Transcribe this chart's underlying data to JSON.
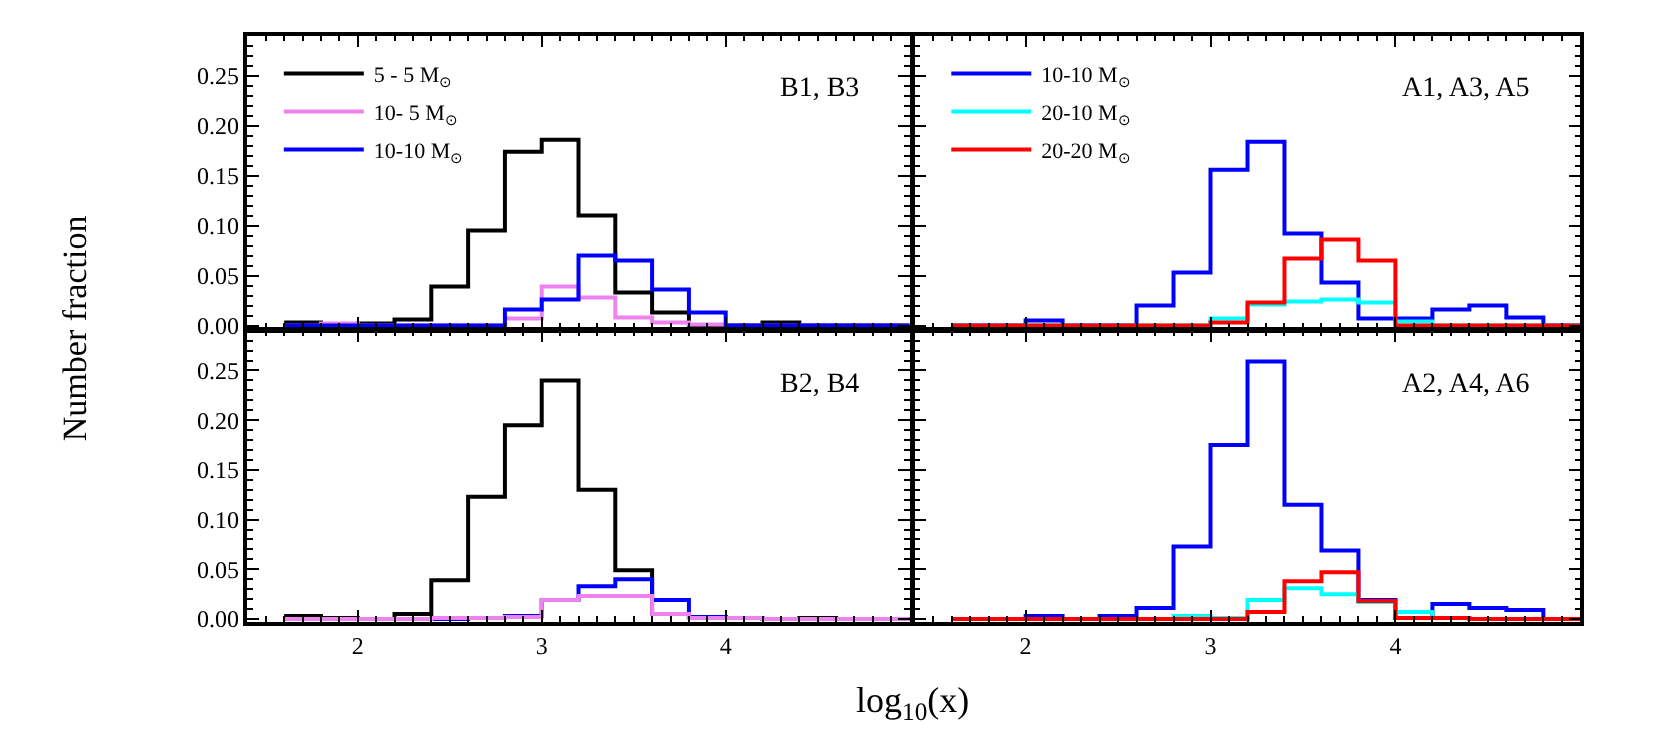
{
  "chart_data": [
    {
      "type": "histogram",
      "bins": [
        1.6,
        1.8,
        2.0,
        2.2,
        2.4,
        2.6,
        2.8,
        3.0,
        3.2,
        3.4,
        3.6,
        3.8,
        4.0,
        4.2,
        4.4,
        4.6,
        4.8,
        5.0
      ],
      "ylabel": "Number fraction",
      "xlim": [
        1.4,
        5.0
      ],
      "xticks": [
        2,
        3,
        4
      ],
      "ylim": [
        -0.003,
        0.29
      ],
      "yticks": [
        {
          "value": 0,
          "label": "0.00"
        },
        {
          "value": 0.05,
          "label": "0.05"
        },
        {
          "value": 0.1,
          "label": "0.10"
        },
        {
          "value": 0.15,
          "label": "0.15"
        },
        {
          "value": 0.2,
          "label": "0.20"
        },
        {
          "value": 0.25,
          "label": "0.25"
        }
      ],
      "tick_labels": "y",
      "legend": "top left",
      "annotations": [
        "B1, B3"
      ],
      "series": [
        {
          "name": "5 - 5 M$_{⊙}$",
          "color": "#000000",
          "values": [
            0.003,
            0.001,
            0.002,
            0.006,
            0.039,
            0.095,
            0.174,
            0.186,
            0.11,
            0.033,
            0.013,
            0,
            0,
            0.003,
            0,
            0,
            0
          ]
        },
        {
          "name": "10- 5 M$_{⊙}$",
          "color": "#ee82ee",
          "values": [
            0,
            0.002,
            0,
            0,
            0,
            0,
            0.007,
            0.039,
            0.028,
            0.008,
            0.003,
            0.001,
            0,
            0,
            0,
            0,
            0
          ]
        },
        {
          "name": "10-10 M$_{⊙}$",
          "color": "#0000ff",
          "values": [
            0,
            0,
            0,
            0,
            0,
            0,
            0.016,
            0.026,
            0.07,
            0.065,
            0.036,
            0.013,
            0,
            0,
            0,
            0,
            0
          ]
        }
      ]
    },
    {
      "type": "histogram",
      "bins": [
        1.6,
        1.8,
        2.0,
        2.2,
        2.4,
        2.6,
        2.8,
        3.0,
        3.2,
        3.4,
        3.6,
        3.8,
        4.0,
        4.2,
        4.4,
        4.6,
        4.8,
        5.0
      ],
      "xlim": [
        1.4,
        5.0
      ],
      "xticks": [
        2,
        3,
        4
      ],
      "ylim": [
        -0.003,
        0.29
      ],
      "yticks": [
        0,
        0.05,
        0.1,
        0.15,
        0.2,
        0.25
      ],
      "tick_labels": false,
      "legend": "top left",
      "annotations": [
        "A1, A3, A5"
      ],
      "series": [
        {
          "name": "10-10 M$_{⊙}$",
          "color": "#0000ff",
          "values": [
            0,
            0,
            0.005,
            0,
            0,
            0.02,
            0.053,
            0.156,
            0.184,
            0.092,
            0.043,
            0.007,
            0.007,
            0.016,
            0.02,
            0.008,
            0
          ]
        },
        {
          "name": "20-10 M$_{⊙}$",
          "color": "#00ffff",
          "values": [
            0,
            0,
            0,
            0,
            0,
            0,
            0,
            0.007,
            0.021,
            0.024,
            0.026,
            0.023,
            0.004,
            0,
            0,
            0,
            0
          ]
        },
        {
          "name": "20-20 M$_{⊙}$",
          "color": "#ff0000",
          "values": [
            0,
            0,
            0,
            0,
            0,
            0,
            0,
            0.003,
            0.023,
            0.067,
            0.086,
            0.065,
            0,
            0,
            0,
            0,
            0
          ]
        }
      ]
    },
    {
      "type": "histogram",
      "bins": [
        1.6,
        1.8,
        2.0,
        2.2,
        2.4,
        2.6,
        2.8,
        3.0,
        3.2,
        3.4,
        3.6,
        3.8,
        4.0,
        4.2,
        4.4,
        4.6,
        4.8,
        5.0
      ],
      "xlabel": "log$_{10}$(x)",
      "xlim": [
        1.4,
        5.0
      ],
      "xticks": [
        2,
        3,
        4
      ],
      "ylim": [
        -0.003,
        0.29
      ],
      "yticks": [
        {
          "value": 0,
          "label": "0.00"
        },
        {
          "value": 0.05,
          "label": "0.05"
        },
        {
          "value": 0.1,
          "label": "0.10"
        },
        {
          "value": 0.15,
          "label": "0.15"
        },
        {
          "value": 0.2,
          "label": "0.20"
        },
        {
          "value": 0.25,
          "label": "0.25"
        }
      ],
      "annotations": [
        "B2, B4"
      ],
      "series": [
        {
          "color": "#000000",
          "values": [
            0.003,
            0.001,
            0,
            0.005,
            0.039,
            0.123,
            0.195,
            0.24,
            0.13,
            0.049,
            0.005,
            0.002,
            0.001,
            0,
            0.001,
            0,
            0
          ]
        },
        {
          "color": "#0000ff",
          "values": [
            0,
            0,
            0,
            0,
            0,
            0.001,
            0.003,
            0.019,
            0.033,
            0.04,
            0.019,
            0.002,
            0.001,
            0,
            0,
            0,
            0
          ]
        },
        {
          "color": "#ee82ee",
          "values": [
            0,
            0,
            0,
            0,
            0.001,
            0.001,
            0.002,
            0.019,
            0.023,
            0.023,
            0.005,
            0.001,
            0.001,
            0,
            0,
            0,
            0
          ]
        }
      ]
    },
    {
      "type": "histogram",
      "bins": [
        1.6,
        1.8,
        2.0,
        2.2,
        2.4,
        2.6,
        2.8,
        3.0,
        3.2,
        3.4,
        3.6,
        3.8,
        4.0,
        4.2,
        4.4,
        4.6,
        4.8,
        5.0
      ],
      "xlim": [
        1.4,
        5.0
      ],
      "xticks": [
        2,
        3,
        4
      ],
      "ylim": [
        -0.003,
        0.29
      ],
      "yticks": [
        0,
        0.05,
        0.1,
        0.15,
        0.2,
        0.25
      ],
      "tick_labels": "x",
      "annotations": [
        "A2, A4, A6"
      ],
      "series": [
        {
          "color": "#0000ff",
          "values": [
            0,
            0,
            0.003,
            0,
            0.003,
            0.011,
            0.073,
            0.175,
            0.259,
            0.115,
            0.069,
            0.019,
            0.001,
            0.015,
            0.011,
            0.009,
            0
          ]
        },
        {
          "color": "#00ffff",
          "values": [
            0,
            0,
            0,
            0,
            0,
            0,
            0.003,
            0.001,
            0.019,
            0.031,
            0.025,
            0.017,
            0.007,
            0.001,
            0,
            0,
            0
          ]
        },
        {
          "color": "#ff0000",
          "values": [
            0,
            0,
            0,
            0,
            0,
            0,
            0,
            0,
            0.007,
            0.038,
            0.047,
            0.018,
            0.001,
            0.001,
            0,
            0,
            0
          ]
        }
      ]
    }
  ]
}
